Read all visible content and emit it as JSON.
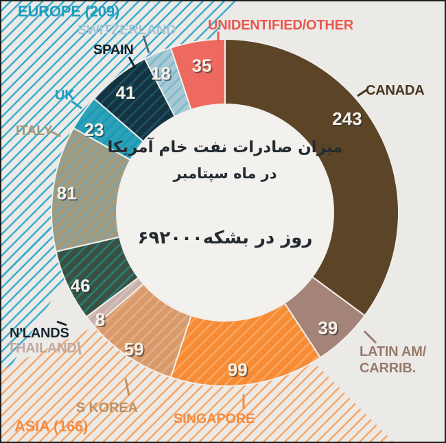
{
  "chart_data": {
    "type": "pie",
    "variant": "donut",
    "total": 692,
    "start_angle_deg": 0,
    "direction": "clockwise",
    "legend_position": "around",
    "center_title": {
      "line1": "میزان صادرات نفت خام آمریکا",
      "line2": "در ماه سپتامبر",
      "line3": "روز در بشکه۶۹۲۰۰۰"
    },
    "segments": [
      {
        "label": "CANADA",
        "value": 243,
        "color": "#5C4527",
        "hatch_color": null,
        "label_color": "#48351F"
      },
      {
        "label": "LATIN AM/\nCARRIB.",
        "value": 39,
        "color": "#A48378",
        "hatch_color": null,
        "label_color": "#97796A"
      },
      {
        "label": "SINGAPORE",
        "value": 99,
        "color": "#F68B34",
        "hatch_color": "#F9A45C",
        "label_color": "#F68C3E"
      },
      {
        "label": "S KOREA",
        "value": 59,
        "color": "#D99A6B",
        "hatch_color": "#E3AC81",
        "label_color": "#BC9164"
      },
      {
        "label": "THAILAND",
        "value": 8,
        "color": "#CBB1AB",
        "hatch_color": "#D5BFB9",
        "label_color": "#C2A8A0"
      },
      {
        "label": "N'LANDS",
        "value": 46,
        "color": "#3A5040",
        "hatch_color": "#2A7A74",
        "label_color": "#16262F"
      },
      {
        "label": "ITALY",
        "value": 81,
        "color": "#A39A7B",
        "hatch_color": "#7FA3A6",
        "label_color": "#A1987A"
      },
      {
        "label": "UK",
        "value": 23,
        "color": "#2AA3BA",
        "hatch_color": "#1E98B0",
        "label_color": "#1E9FBE"
      },
      {
        "label": "SPAIN",
        "value": 41,
        "color": "#143340",
        "hatch_color": "#1D4F60",
        "label_color": "#0F2029"
      },
      {
        "label": "SWITZERLAND",
        "value": 18,
        "color": "#A9C9D7",
        "hatch_color": "#7FBACB",
        "label_color": "#A2C4D4"
      },
      {
        "label": "UNIDENTIFIED/OTHER",
        "value": 35,
        "color": "#EE6A60",
        "hatch_color": null,
        "label_color": "#E85850"
      }
    ],
    "group_labels": [
      {
        "label": "EUROPE (209)",
        "value": 209,
        "color": "#1D9DBE"
      },
      {
        "label": "ASIA (166)",
        "value": 166,
        "color": "#F68C3E"
      }
    ]
  },
  "colors": {
    "background": "#ECEAE7",
    "hole": "#F3F1EE",
    "hatch_teal": "#38ACCC",
    "hatch_orange": "#F8A768",
    "separator": "#F1EFEC",
    "number_text": "#F8F1E4",
    "number_shadow": "rgba(23,42,66,0.55)",
    "center_text": "#242B31"
  }
}
